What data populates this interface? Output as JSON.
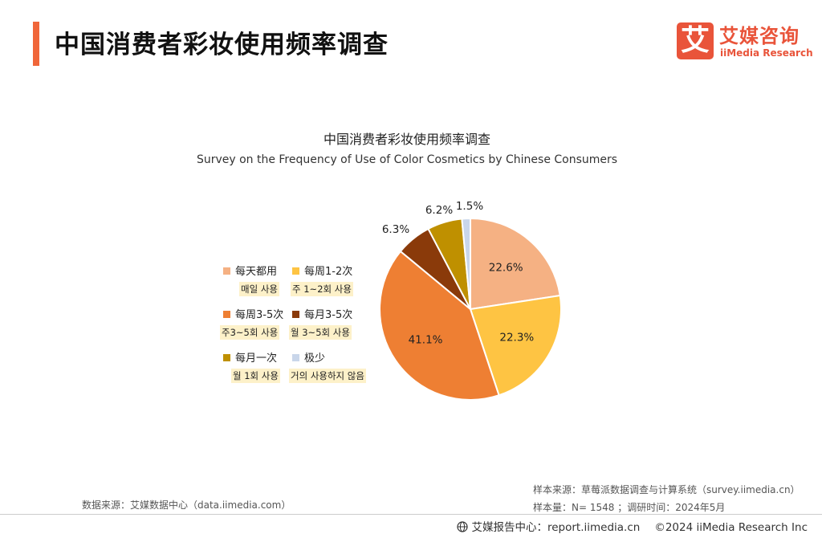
{
  "header": {
    "title": "中国消费者彩妆使用频率调查",
    "logo_mark": "艾",
    "logo_cn": "艾媒咨询",
    "logo_en": "iiMedia Research"
  },
  "chart_data": {
    "type": "pie",
    "title": "中国消费者彩妆使用频率调查",
    "subtitle": "Survey on the Frequency of Use of Color Cosmetics by Chinese Consumers",
    "unit": "%",
    "legend_position": "left",
    "slices": [
      {
        "label": "每天都用",
        "label_ko": "매일 사용",
        "value": 22.6,
        "display": "22.6%",
        "color": "#f5b183"
      },
      {
        "label": "每周1-2次",
        "label_ko": "주 1~2회 사용",
        "value": 22.3,
        "display": "22.3%",
        "color": "#fec443"
      },
      {
        "label": "每周3-5次",
        "label_ko": "주3~5회 사용",
        "value": 41.1,
        "display": "41.1%",
        "color": "#ee7f33"
      },
      {
        "label": "每月3-5次",
        "label_ko": "월 3~5회 사용",
        "value": 6.3,
        "display": "6.3%",
        "color": "#8a3a0a"
      },
      {
        "label": "每月一次",
        "label_ko": "월 1회 사용",
        "value": 6.2,
        "display": "6.2%",
        "color": "#bf9000"
      },
      {
        "label": "极少",
        "label_ko": "거의 사용하지 않음",
        "value": 1.5,
        "display": "1.5%",
        "color": "#c9d6ea"
      }
    ]
  },
  "sources": {
    "left": "数据来源：艾媒数据中心（data.iimedia.com）",
    "right_line1": "样本来源：草莓派数据调查与计算系统（survey.iimedia.cn）",
    "right_line2": "样本量：N= 1548 ；调研时间：2024年5月"
  },
  "footer": {
    "globe_icon": "globe-icon",
    "center_label": "艾媒报告中心：report.iimedia.cn",
    "copyright": "©2024  iiMedia Research  Inc"
  }
}
